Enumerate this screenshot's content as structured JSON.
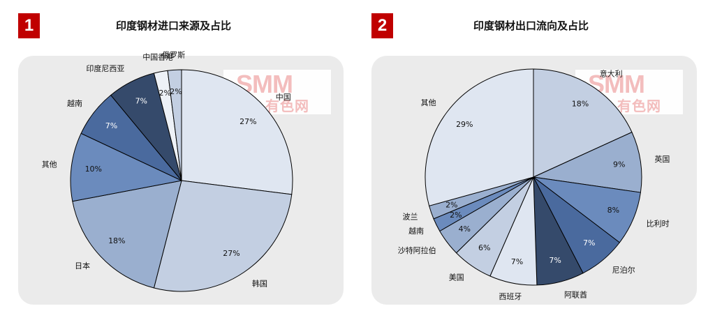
{
  "header": {
    "left_number": "1",
    "left_title": "印度钢材进口来源及占比",
    "right_number": "2",
    "right_title": "印度钢材出口流向及占比"
  },
  "watermark": {
    "line1": "SMM",
    "line2": "有色网"
  },
  "colors": {
    "badge": "#c00000",
    "panel": "#ebebeb",
    "outline": "#000000"
  },
  "chart_data": [
    {
      "type": "pie",
      "title": "印度钢材进口来源及占比",
      "start": "12 o'clock, clockwise",
      "slices": [
        {
          "label": "中国",
          "value": 27,
          "pct": "27%",
          "color": "#dfe6f1"
        },
        {
          "label": "韩国",
          "value": 27,
          "pct": "27%",
          "color": "#c3cfe2"
        },
        {
          "label": "日本",
          "value": 18,
          "pct": "18%",
          "color": "#9aafcf"
        },
        {
          "label": "其他",
          "value": 10,
          "pct": "10%",
          "color": "#6b8bbd"
        },
        {
          "label": "越南",
          "value": 7,
          "pct": "7%",
          "color": "#4a6a9e"
        },
        {
          "label": "印度尼西亚",
          "value": 7,
          "pct": "7%",
          "color": "#354a6b"
        },
        {
          "label": "中国香港",
          "value": 2,
          "pct": "2%",
          "color": "#edf1f7"
        },
        {
          "label": "俄罗斯",
          "value": 2,
          "pct": "2%",
          "color": "#c3cfe2"
        }
      ]
    },
    {
      "type": "pie",
      "title": "印度钢材出口流向及占比",
      "start": "12 o'clock, clockwise",
      "slices": [
        {
          "label": "意大利",
          "value": 18,
          "pct": "18%",
          "color": "#c3cfe2"
        },
        {
          "label": "英国",
          "value": 9,
          "pct": "9%",
          "color": "#9aafcf"
        },
        {
          "label": "比利时",
          "value": 8,
          "pct": "8%",
          "color": "#6b8bbd"
        },
        {
          "label": "尼泊尔",
          "value": 7,
          "pct": "7%",
          "color": "#4a6a9e"
        },
        {
          "label": "阿联酋",
          "value": 7,
          "pct": "7%",
          "color": "#354a6b"
        },
        {
          "label": "西班牙",
          "value": 7,
          "pct": "7%",
          "color": "#dfe6f1"
        },
        {
          "label": "美国",
          "value": 6,
          "pct": "6%",
          "color": "#c3cfe2"
        },
        {
          "label": "沙特阿拉伯",
          "value": 4,
          "pct": "4%",
          "color": "#9aafcf"
        },
        {
          "label": "越南",
          "value": 2,
          "pct": "2%",
          "color": "#6b8bbd"
        },
        {
          "label": "波兰",
          "value": 2,
          "pct": "2%",
          "color": "#9aafcf"
        },
        {
          "label": "其他",
          "value": 29,
          "pct": "29%",
          "color": "#dfe6f1"
        }
      ]
    }
  ]
}
